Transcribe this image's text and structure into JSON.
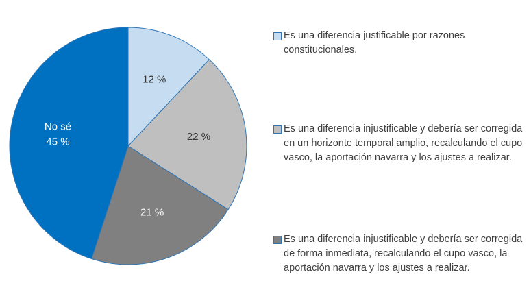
{
  "chart_data": {
    "type": "pie",
    "categories": [
      "Es una diferencia justificable por razones constitucionales.",
      "Es una diferencia injustificable y debería ser corregida en un horizonte temporal amplio, recalculando el cupo vasco, la aportación navarra y los ajustes a realizar.",
      "Es una diferencia injustificable y debería ser corregida de forma inmediata, recalculando el cupo vasco, la aportación navarra y los ajustes a realizar.",
      "No sé"
    ],
    "values": [
      12,
      22,
      21,
      45
    ],
    "value_labels": [
      "12 %",
      "22 %",
      "21 %",
      "45 %"
    ],
    "colors": [
      "#c5dcf1",
      "#bfbfbf",
      "#808080",
      "#0070c0"
    ]
  }
}
